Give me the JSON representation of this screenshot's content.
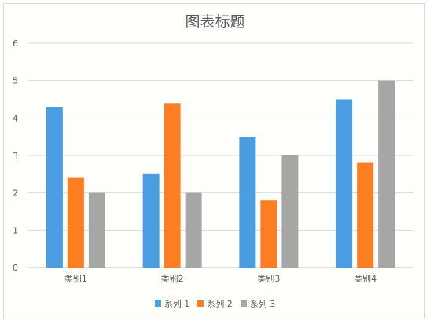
{
  "chart_data": {
    "type": "bar",
    "title": "图表标题",
    "xlabel": "",
    "ylabel": "",
    "categories": [
      "类别1",
      "类别2",
      "类别3",
      "类别4"
    ],
    "series": [
      {
        "name": "系列 1",
        "color": "#4a9de0",
        "values": [
          4.3,
          2.5,
          3.5,
          4.5
        ]
      },
      {
        "name": "系列 2",
        "color": "#fd7e22",
        "values": [
          2.4,
          4.4,
          1.8,
          2.8
        ]
      },
      {
        "name": "系列 3",
        "color": "#a6a6a6",
        "values": [
          2.0,
          2.0,
          3.0,
          5.0
        ]
      }
    ],
    "ylim": [
      0,
      6
    ],
    "yticks": [
      "0",
      "1",
      "2",
      "3",
      "4",
      "5",
      "6"
    ],
    "grid": true,
    "legend_position": "bottom"
  }
}
